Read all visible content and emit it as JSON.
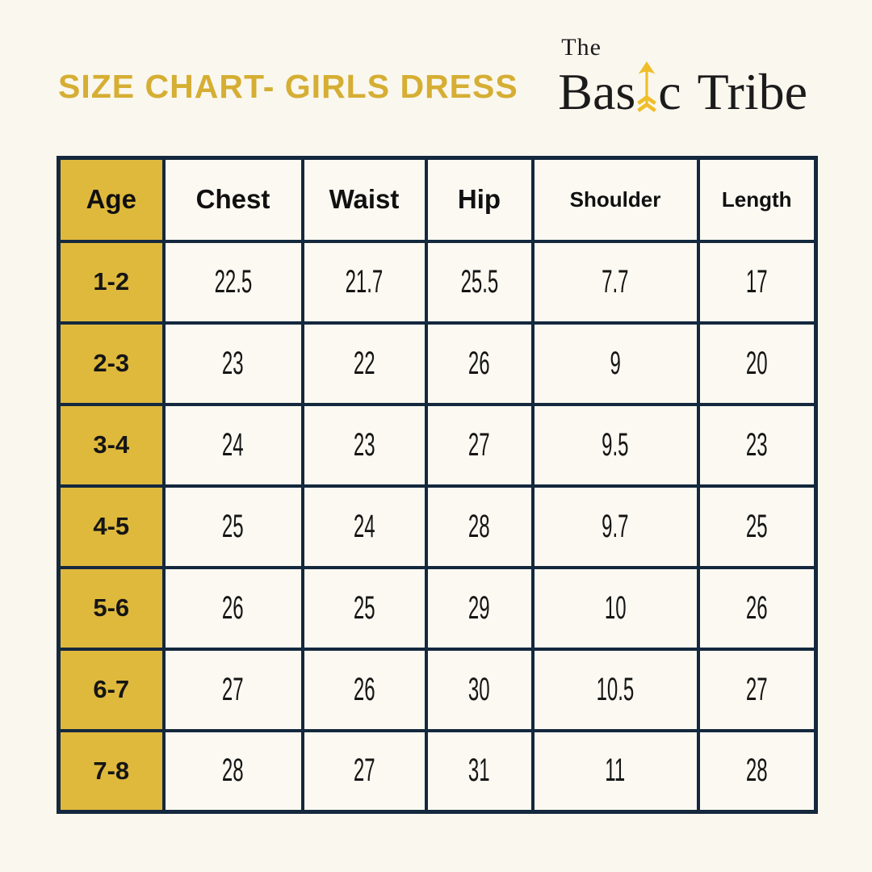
{
  "title": "SIZE CHART- GIRLS DRESS",
  "brand": {
    "the": "The",
    "basic_pre": "Bas",
    "basic_post": "c",
    "tribe": "Tribe",
    "arrow_icon": "golden-up-arrow",
    "arrow_color": "#EFBE28"
  },
  "colors": {
    "background": "#FAF7EE",
    "cell_background": "#FBF9F1",
    "accent_gold": "#DFB93C",
    "title_gold": "#D5AE33",
    "border_navy": "#14283E",
    "text": "#151515"
  },
  "chart_data": {
    "type": "table",
    "title": "SIZE CHART- GIRLS DRESS",
    "columns": [
      "Age",
      "Chest",
      "Waist",
      "Hip",
      "Shoulder",
      "Length"
    ],
    "rows": [
      [
        "1-2",
        "22.5",
        "21.7",
        "25.5",
        "7.7",
        "17"
      ],
      [
        "2-3",
        "23",
        "22",
        "26",
        "9",
        "20"
      ],
      [
        "3-4",
        "24",
        "23",
        "27",
        "9.5",
        "23"
      ],
      [
        "4-5",
        "25",
        "24",
        "28",
        "9.7",
        "25"
      ],
      [
        "5-6",
        "26",
        "25",
        "29",
        "10",
        "26"
      ],
      [
        "6-7",
        "27",
        "26",
        "30",
        "10.5",
        "27"
      ],
      [
        "7-8",
        "28",
        "27",
        "31",
        "11",
        "28"
      ]
    ]
  }
}
